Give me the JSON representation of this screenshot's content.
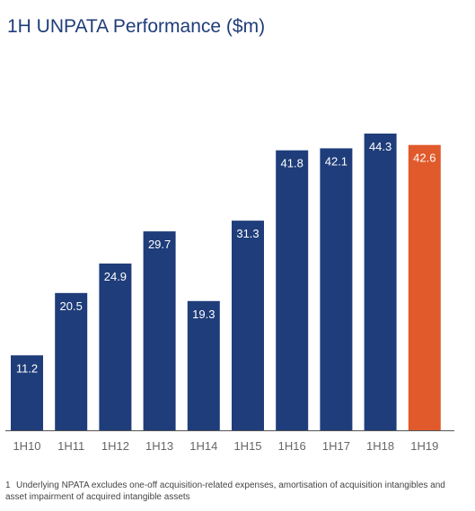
{
  "title": "1H UNPATA Performance ($m)",
  "footnote": {
    "marker": "1",
    "text": "Underlying NPATA excludes one-off acquisition-related expenses, amortisation of acquisition intangibles and asset impairment of acquired intangible assets"
  },
  "colors": {
    "bar": "#1f3d7a",
    "highlight": "#e05a2b",
    "label": "#ffffff",
    "axis": "#555555",
    "tick_text": "#666666"
  },
  "chart_data": {
    "type": "bar",
    "title": "1H UNPATA Performance ($m)",
    "categories": [
      "1H10",
      "1H11",
      "1H12",
      "1H13",
      "1H14",
      "1H15",
      "1H16",
      "1H17",
      "1H18",
      "1H19"
    ],
    "values": [
      11.2,
      20.5,
      24.9,
      29.7,
      19.3,
      31.3,
      41.8,
      42.1,
      44.3,
      42.6
    ],
    "data_labels": [
      "11.2",
      "20.5",
      "24.9",
      "29.7",
      "19.3",
      "31.3",
      "41.8",
      "42.1",
      "44.3",
      "42.6"
    ],
    "highlight_category": "1H19",
    "ylim": [
      0,
      44.3
    ],
    "xlabel": "",
    "ylabel": "",
    "grid": false,
    "legend": "none"
  }
}
